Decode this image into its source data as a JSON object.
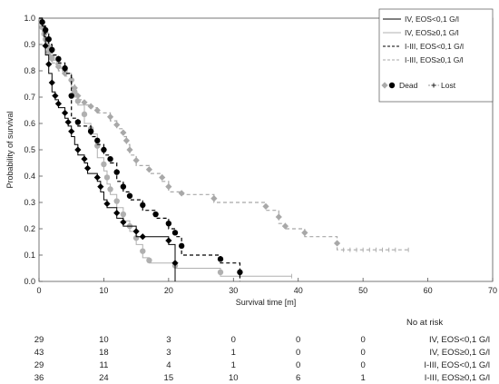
{
  "chart_data": {
    "type": "line",
    "subtype": "kaplan-meier",
    "xlabel": "Survival time [m]",
    "ylabel": "Probability of survival",
    "xlim": [
      0,
      70
    ],
    "ylim": [
      0,
      1.0
    ],
    "xticks": [
      "0",
      "10",
      "20",
      "30",
      "40",
      "50",
      "60",
      "70"
    ],
    "yticks": [
      "0.0",
      "0.1",
      "0.2",
      "0.3",
      "0.4",
      "0.5",
      "0.6",
      "0.7",
      "0.8",
      "0.9",
      "1.0"
    ],
    "grid": false,
    "legend_position": "top-right",
    "marker_legend": {
      "dead": "Dead",
      "lost": "Lost"
    },
    "series": [
      {
        "name": "IV, EOS<0,1 G/l",
        "color": "#000000",
        "dash": "solid",
        "marker_color": "#000000",
        "marker_shape": "diamond",
        "steps": [
          [
            0,
            1.0
          ],
          [
            0.5,
            0.97
          ],
          [
            0.8,
            0.93
          ],
          [
            1,
            0.86
          ],
          [
            1.5,
            0.79
          ],
          [
            2,
            0.72
          ],
          [
            2.5,
            0.69
          ],
          [
            3,
            0.66
          ],
          [
            4,
            0.62
          ],
          [
            4.5,
            0.59
          ],
          [
            5,
            0.55
          ],
          [
            5.5,
            0.52
          ],
          [
            6,
            0.48
          ],
          [
            7,
            0.45
          ],
          [
            7.5,
            0.41
          ],
          [
            9,
            0.38
          ],
          [
            9.5,
            0.34
          ],
          [
            10,
            0.31
          ],
          [
            10.5,
            0.28
          ],
          [
            12,
            0.24
          ],
          [
            13,
            0.21
          ],
          [
            15,
            0.17
          ],
          [
            20,
            0.14
          ],
          [
            21,
            0.0
          ]
        ],
        "dead_times": [
          1,
          1.5,
          2,
          2.5,
          3,
          4,
          4.5,
          5,
          6,
          7,
          7.5,
          9,
          9.5,
          10.5,
          12,
          13,
          15,
          16,
          20,
          21
        ],
        "lost_times": []
      },
      {
        "name": "IV, EOS≥0,1 G/l",
        "color": "#b0b0b0",
        "dash": "solid",
        "marker_color": "#b0b0b0",
        "marker_shape": "circle",
        "steps": [
          [
            0,
            1.0
          ],
          [
            0.3,
            0.98
          ],
          [
            0.5,
            0.95
          ],
          [
            0.8,
            0.93
          ],
          [
            1,
            0.91
          ],
          [
            1.3,
            0.88
          ],
          [
            1.5,
            0.86
          ],
          [
            2,
            0.84
          ],
          [
            3,
            0.81
          ],
          [
            4,
            0.79
          ],
          [
            5,
            0.74
          ],
          [
            5.5,
            0.7
          ],
          [
            6,
            0.67
          ],
          [
            7,
            0.6
          ],
          [
            8,
            0.56
          ],
          [
            9,
            0.47
          ],
          [
            10,
            0.42
          ],
          [
            10.5,
            0.37
          ],
          [
            11,
            0.33
          ],
          [
            12,
            0.28
          ],
          [
            13,
            0.23
          ],
          [
            14,
            0.19
          ],
          [
            15,
            0.14
          ],
          [
            16,
            0.09
          ],
          [
            17,
            0.07
          ],
          [
            21,
            0.05
          ],
          [
            28,
            0.02
          ],
          [
            39,
            0.02
          ]
        ],
        "dead_times": [
          0.3,
          0.5,
          0.8,
          1,
          1.3,
          1.5,
          2,
          3,
          4,
          5,
          5.5,
          6,
          7,
          8,
          9,
          10,
          10.5,
          11,
          12,
          13,
          14,
          15,
          16,
          17,
          21,
          28
        ],
        "lost_times": [
          39
        ]
      },
      {
        "name": "I-III, EOS<0,1 G/l",
        "color": "#000000",
        "dash": "dashed",
        "marker_color": "#000000",
        "marker_shape": "circle",
        "steps": [
          [
            0,
            1.0
          ],
          [
            0.5,
            0.97
          ],
          [
            1,
            0.94
          ],
          [
            1.5,
            0.9
          ],
          [
            2,
            0.86
          ],
          [
            3,
            0.83
          ],
          [
            4,
            0.79
          ],
          [
            5,
            0.62
          ],
          [
            6,
            0.59
          ],
          [
            8,
            0.55
          ],
          [
            9,
            0.52
          ],
          [
            10,
            0.48
          ],
          [
            11,
            0.45
          ],
          [
            12,
            0.38
          ],
          [
            13,
            0.34
          ],
          [
            14,
            0.31
          ],
          [
            16,
            0.27
          ],
          [
            18,
            0.24
          ],
          [
            20,
            0.2
          ],
          [
            21,
            0.17
          ],
          [
            22,
            0.1
          ],
          [
            28,
            0.07
          ],
          [
            31,
            0.0
          ]
        ],
        "dead_times": [
          0.5,
          1,
          1.5,
          2,
          3,
          4,
          5,
          6,
          8,
          9,
          10,
          11,
          12,
          13,
          14,
          16,
          18,
          20,
          21,
          22,
          28,
          31
        ],
        "lost_times": []
      },
      {
        "name": "I-III, EOS≥0,1 G/l",
        "color": "#a8a8a8",
        "dash": "dashed",
        "marker_color": "#a8a8a8",
        "marker_shape": "diamond",
        "steps": [
          [
            0,
            1.0
          ],
          [
            0.5,
            0.97
          ],
          [
            1,
            0.92
          ],
          [
            1.5,
            0.86
          ],
          [
            2,
            0.83
          ],
          [
            3,
            0.8
          ],
          [
            4,
            0.78
          ],
          [
            5,
            0.75
          ],
          [
            5.5,
            0.72
          ],
          [
            6,
            0.69
          ],
          [
            7,
            0.67
          ],
          [
            8,
            0.66
          ],
          [
            9,
            0.64
          ],
          [
            11,
            0.61
          ],
          [
            12,
            0.58
          ],
          [
            13,
            0.55
          ],
          [
            13.5,
            0.52
          ],
          [
            14,
            0.48
          ],
          [
            15,
            0.44
          ],
          [
            17,
            0.41
          ],
          [
            19,
            0.38
          ],
          [
            20,
            0.34
          ],
          [
            22,
            0.33
          ],
          [
            27,
            0.3
          ],
          [
            35,
            0.27
          ],
          [
            37,
            0.22
          ],
          [
            38,
            0.2
          ],
          [
            41,
            0.17
          ],
          [
            46,
            0.12
          ],
          [
            57,
            0.12
          ]
        ],
        "dead_times": [
          0.5,
          1,
          1.5,
          2,
          3,
          4,
          5,
          5.5,
          6,
          7,
          8,
          9,
          11,
          12,
          13,
          13.5,
          14,
          15,
          17,
          19,
          20,
          22,
          27,
          35,
          37,
          38,
          41,
          46
        ],
        "lost_times": [
          47,
          48,
          49,
          50,
          51,
          52,
          53,
          54,
          55,
          57
        ]
      }
    ],
    "risk_table": {
      "title": "No at risk",
      "times": [
        0,
        10,
        20,
        30,
        40,
        50
      ],
      "rows": [
        {
          "label": "IV, EOS<0,1 G/l",
          "counts": [
            "29",
            "10",
            "3",
            "0",
            "0",
            "0"
          ]
        },
        {
          "label": "IV, EOS≥0,1 G/l",
          "counts": [
            "43",
            "18",
            "3",
            "1",
            "0",
            "0"
          ]
        },
        {
          "label": "I-III, EOS<0,1 G/l",
          "counts": [
            "29",
            "11",
            "4",
            "1",
            "0",
            "0"
          ]
        },
        {
          "label": "I-III, EOS≥0,1 G/l",
          "counts": [
            "36",
            "24",
            "15",
            "10",
            "6",
            "1"
          ]
        }
      ]
    }
  }
}
